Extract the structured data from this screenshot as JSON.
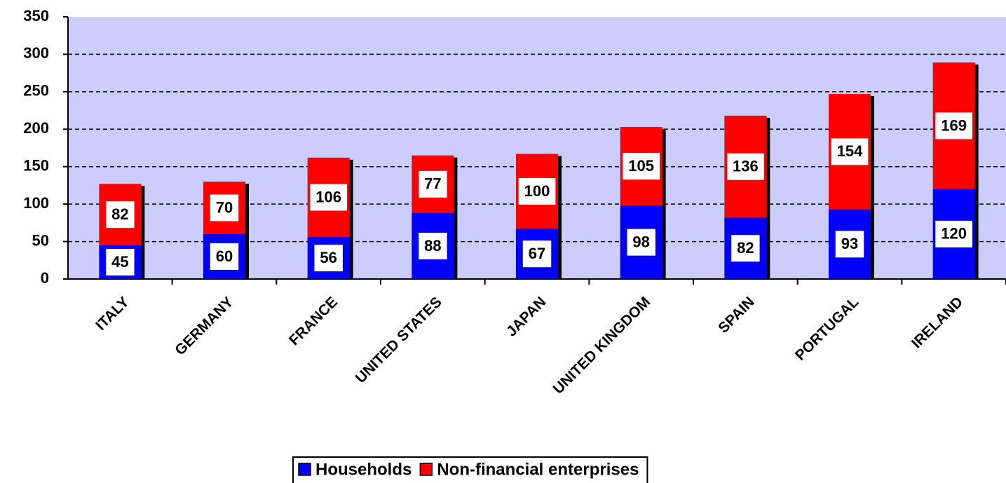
{
  "chart_data": {
    "type": "stacked_bar",
    "categories": [
      "ITALY",
      "GERMANY",
      "FRANCE",
      "UNITED STATES",
      "JAPAN",
      "UNITED KINGDOM",
      "SPAIN",
      "PORTUGAL",
      "IRELAND"
    ],
    "series": [
      {
        "name": "Households",
        "color": "#0000ff",
        "values": [
          45,
          60,
          56,
          88,
          67,
          98,
          82,
          93,
          120
        ]
      },
      {
        "name": "Non-financial enterprises",
        "color": "#ff0000",
        "values": [
          82,
          70,
          106,
          77,
          100,
          105,
          136,
          154,
          169
        ]
      }
    ],
    "ylim": [
      0,
      350
    ],
    "yticks": [
      0,
      50,
      100,
      150,
      200,
      250,
      300,
      350
    ],
    "grid": true,
    "legend": "bottom"
  }
}
